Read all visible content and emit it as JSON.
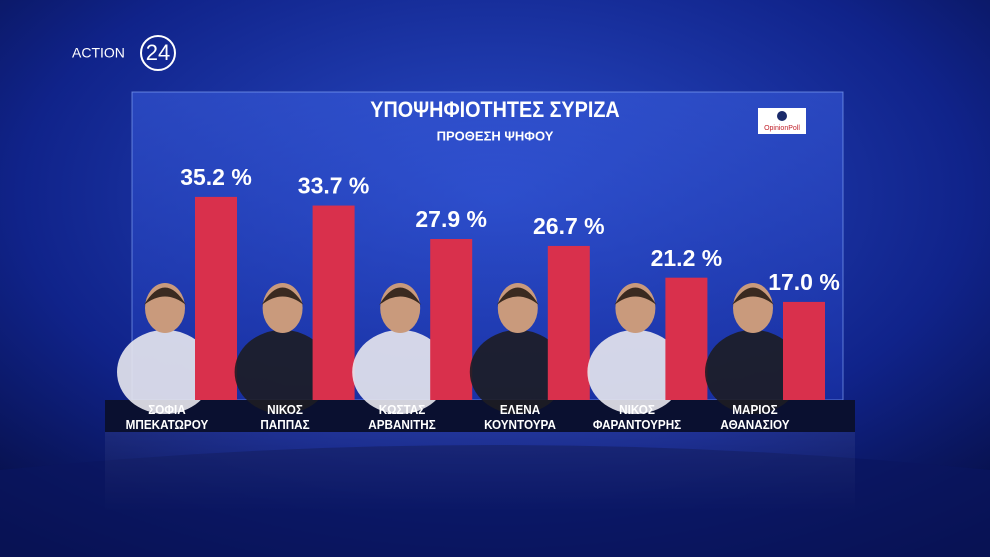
{
  "branding": {
    "name": "ACTION",
    "number": "24"
  },
  "chart_data": {
    "type": "bar",
    "title": "ΥΠΟΨΗΦΙΟΤΗΤΕΣ ΣΥΡΙΖΑ",
    "subtitle": "ΠΡΟΘΕΣΗ ΨΗΦΟΥ",
    "source": "OpinionPoll",
    "categories": [
      "ΣΟΦΙΑ\nΜΠΕΚΑΤΩΡΟΥ",
      "ΝΙΚΟΣ\nΠΑΠΠΑΣ",
      "ΚΩΣΤΑΣ\nΑΡΒΑΝΙΤΗΣ",
      "ΕΛΕΝΑ\nΚΟΥΝΤΟΥΡΑ",
      "ΝΙΚΟΣ\nΦΑΡΑΝΤΟΥΡΗΣ",
      "ΜΑΡΙΟΣ\nΑΘΑΝΑΣΙΟΥ"
    ],
    "values": [
      35.2,
      33.7,
      27.9,
      26.7,
      21.2,
      17.0
    ],
    "value_labels": [
      "35.2 %",
      "33.7 %",
      "27.9 %",
      "26.7 %",
      "21.2 %",
      "17.0 %"
    ],
    "color": "#d9304c"
  }
}
